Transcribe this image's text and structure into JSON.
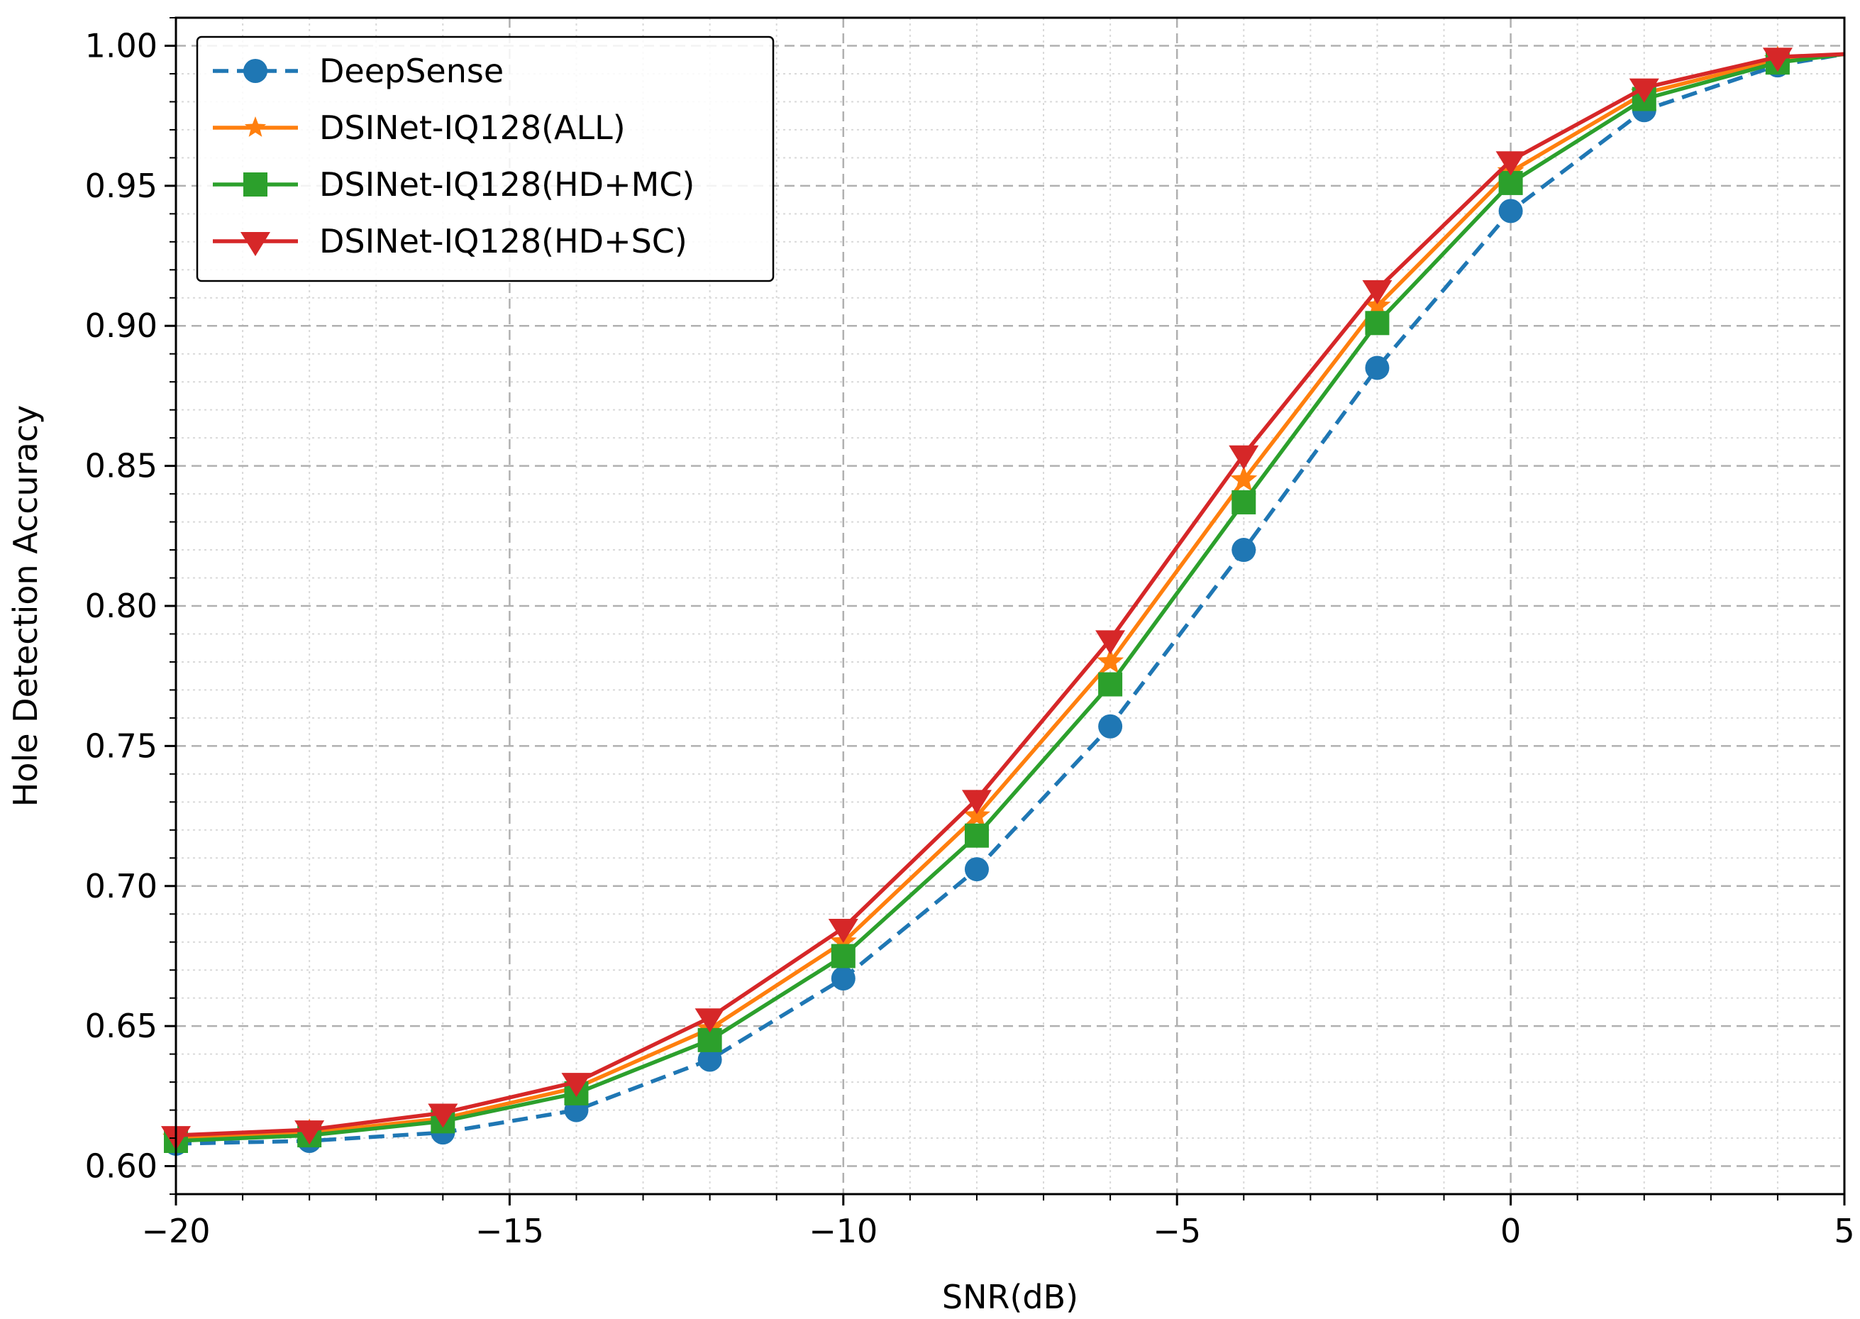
{
  "chart_data": {
    "type": "line",
    "title": "",
    "xlabel": "SNR(dB)",
    "ylabel": "Hole Detection Accuracy",
    "xlim": [
      -20,
      5
    ],
    "ylim": [
      0.59,
      1.01
    ],
    "x_ticks": [
      -20,
      -15,
      -10,
      -5,
      0,
      5
    ],
    "x_tick_labels": [
      "−20",
      "−15",
      "−10",
      "−5",
      "0",
      "5"
    ],
    "x_minor_step": 1,
    "y_ticks": [
      0.6,
      0.65,
      0.7,
      0.75,
      0.8,
      0.85,
      0.9,
      0.95,
      1.0
    ],
    "y_tick_labels": [
      "0.60",
      "0.65",
      "0.70",
      "0.75",
      "0.80",
      "0.85",
      "0.90",
      "0.95",
      "1.00"
    ],
    "y_minor_step": 0.01,
    "grid": true,
    "legend_position": "top-left",
    "x": [
      -20,
      -18,
      -16,
      -14,
      -12,
      -10,
      -8,
      -6,
      -4,
      -2,
      0,
      2,
      4,
      5
    ],
    "series": [
      {
        "name": "DeepSense",
        "color": "#1f77b4",
        "linestyle": "dashed",
        "marker": "circle",
        "values": [
          0.608,
          0.609,
          0.612,
          0.62,
          0.638,
          0.667,
          0.706,
          0.757,
          0.82,
          0.885,
          0.941,
          0.977,
          0.993,
          0.997
        ],
        "marker_mask": [
          1,
          1,
          1,
          1,
          1,
          1,
          1,
          1,
          1,
          1,
          1,
          1,
          1,
          0
        ]
      },
      {
        "name": "DSINet-IQ128(ALL)",
        "color": "#ff7f0e",
        "linestyle": "solid",
        "marker": "star",
        "values": [
          0.61,
          0.612,
          0.617,
          0.628,
          0.649,
          0.68,
          0.725,
          0.78,
          0.845,
          0.907,
          0.955,
          0.983,
          0.995,
          0.997
        ],
        "marker_mask": [
          1,
          1,
          1,
          1,
          1,
          1,
          1,
          1,
          1,
          1,
          1,
          1,
          1,
          0
        ]
      },
      {
        "name": "DSINet-IQ128(HD+MC)",
        "color": "#2ca02c",
        "linestyle": "solid",
        "marker": "square",
        "values": [
          0.609,
          0.611,
          0.616,
          0.626,
          0.645,
          0.675,
          0.718,
          0.772,
          0.837,
          0.901,
          0.951,
          0.981,
          0.994,
          0.997
        ],
        "marker_mask": [
          1,
          1,
          1,
          1,
          1,
          1,
          1,
          1,
          1,
          1,
          1,
          1,
          1,
          0
        ]
      },
      {
        "name": "DSINet-IQ128(HD+SC)",
        "color": "#d62728",
        "linestyle": "solid",
        "marker": "triangle-down",
        "values": [
          0.611,
          0.613,
          0.619,
          0.63,
          0.653,
          0.685,
          0.731,
          0.788,
          0.854,
          0.913,
          0.959,
          0.985,
          0.996,
          0.997
        ],
        "marker_mask": [
          1,
          1,
          1,
          1,
          1,
          1,
          1,
          1,
          1,
          1,
          1,
          1,
          1,
          0
        ]
      }
    ]
  }
}
